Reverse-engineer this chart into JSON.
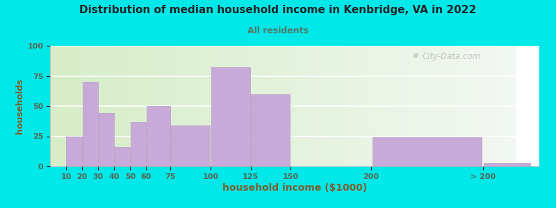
{
  "title": "Distribution of median household income in Kenbridge, VA in 2022",
  "subtitle": "All residents",
  "xlabel": "household income ($1000)",
  "ylabel": "households",
  "background_outer": "#00e8e8",
  "bar_color": "#c8aad8",
  "bar_edge_color": "#b898c8",
  "title_color": "#222222",
  "subtitle_color": "#557766",
  "axis_label_color": "#7a6030",
  "tick_label_color": "#556655",
  "watermark": "City-Data.com",
  "tick_positions": [
    10,
    20,
    30,
    40,
    50,
    60,
    75,
    100,
    125,
    150,
    200,
    270
  ],
  "values": [
    25,
    70,
    44,
    16,
    37,
    50,
    34,
    82,
    60,
    0,
    24,
    3
  ],
  "bar_labels": [
    "10",
    "20",
    "30",
    "40",
    "50",
    "60",
    "75",
    "100",
    "125",
    "150",
    "200",
    "> 200"
  ],
  "ylim": [
    0,
    100
  ],
  "yticks": [
    0,
    25,
    50,
    75,
    100
  ],
  "plot_bg_left": "#d8eec8",
  "plot_bg_right": "#f0f5f0"
}
